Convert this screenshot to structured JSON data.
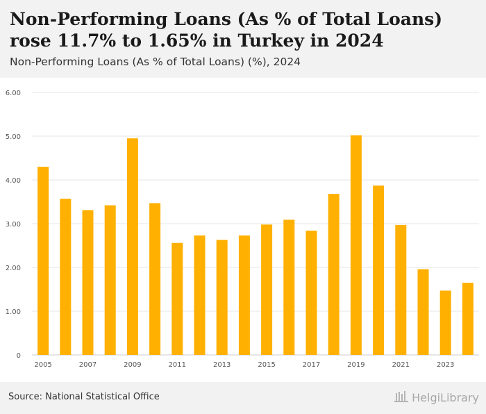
{
  "header": {
    "title": "Non-Performing Loans (As % of Total Loans) rose 11.7% to 1.65% in Turkey in 2024",
    "subtitle": "Non-Performing Loans (As % of Total Loans) (%), 2024"
  },
  "footer": {
    "source": "Source: National Statistical Office",
    "brand": "HelgiLibrary"
  },
  "colors": {
    "bar": "#FFB000",
    "grid": "#e6e6e6",
    "tick_text": "#555555",
    "background": "#f2f2f2",
    "plot_background": "#ffffff"
  },
  "icons": {
    "brand_logo": "library-logo-icon"
  },
  "chart_data": {
    "type": "bar",
    "title": "Non-Performing Loans (As % of Total Loans) rose 11.7% to 1.65% in Turkey in 2024",
    "subtitle": "Non-Performing Loans (As % of Total Loans) (%), 2024",
    "categories": [
      "2005",
      "2006",
      "2007",
      "2008",
      "2009",
      "2010",
      "2011",
      "2012",
      "2013",
      "2014",
      "2015",
      "2016",
      "2017",
      "2018",
      "2019",
      "2020",
      "2021",
      "2022",
      "2023",
      "2024"
    ],
    "x_tick_labels": [
      "2005",
      "2007",
      "2009",
      "2011",
      "2013",
      "2015",
      "2017",
      "2019",
      "2021",
      "2023"
    ],
    "values": [
      4.3,
      3.57,
      3.31,
      3.42,
      4.95,
      3.47,
      2.56,
      2.73,
      2.63,
      2.73,
      2.98,
      3.09,
      2.84,
      3.68,
      5.02,
      3.87,
      2.97,
      1.96,
      1.47,
      1.65
    ],
    "y_ticks": [
      "0",
      "1.00",
      "2.00",
      "3.00",
      "4.00",
      "5.00",
      "6.00"
    ],
    "ylim": [
      0,
      6
    ],
    "xlabel": "",
    "ylabel": "",
    "grid": true,
    "legend": "none"
  }
}
